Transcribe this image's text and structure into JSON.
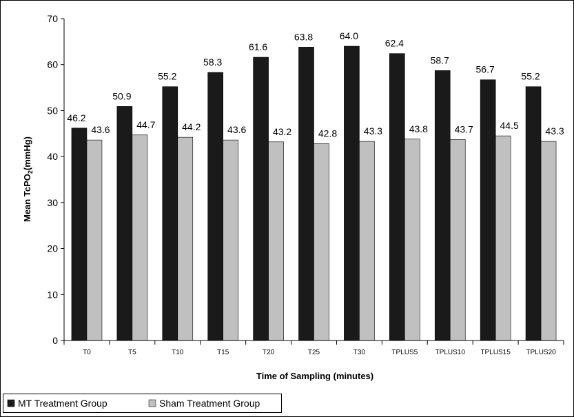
{
  "chart_data": {
    "type": "bar",
    "title": "",
    "xlabel": "Time of Sampling (minutes)",
    "ylabel_main": "Mean TcPO",
    "ylabel_sub": "2",
    "ylabel_unit": "(mmHg)",
    "ylim": [
      0,
      70
    ],
    "yticks": [
      0,
      10,
      20,
      30,
      40,
      50,
      60,
      70
    ],
    "grid": false,
    "legend_position": "bottom-left",
    "categories": [
      "T0",
      "T5",
      "T10",
      "T15",
      "T20",
      "T25",
      "T30",
      "TPLUS5",
      "TPLUS10",
      "TPLUS15",
      "TPLUS20"
    ],
    "series": [
      {
        "name": "MT Treatment Group",
        "color": "#1a1a1a",
        "values": [
          46.2,
          50.9,
          55.2,
          58.3,
          61.6,
          63.8,
          64.0,
          62.4,
          58.7,
          56.7,
          55.2
        ],
        "labels": [
          "46.2",
          "50.9",
          "55.2",
          "58.3",
          "61.6",
          "63.8",
          "64.0",
          "62.4",
          "58.7",
          "56.7",
          "55.2"
        ]
      },
      {
        "name": "Sham Treatment Group",
        "color": "#c0c0c0",
        "values": [
          43.6,
          44.7,
          44.2,
          43.6,
          43.2,
          42.8,
          43.3,
          43.8,
          43.7,
          44.5,
          43.3
        ],
        "labels": [
          "43.6",
          "44.7",
          "44.2",
          "43.6",
          "43.2",
          "42.8",
          "43.3",
          "43.8",
          "43.7",
          "44.5",
          "43.3"
        ]
      }
    ]
  }
}
